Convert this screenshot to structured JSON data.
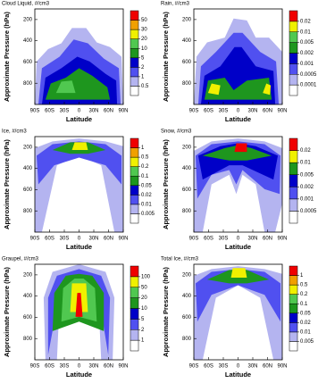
{
  "chart_data": [
    {
      "type": "contour",
      "title": "Cloud Liquid, #/cm3",
      "xlabel": "Latitude",
      "ylabel": "Approximate Pressure (hPa)",
      "xlim": [
        -90,
        90
      ],
      "xticks": [
        {
          "value": -90,
          "label": "90S"
        },
        {
          "value": -60,
          "label": "60S"
        },
        {
          "value": -30,
          "label": "30S"
        },
        {
          "value": 0,
          "label": "0"
        },
        {
          "value": 30,
          "label": "30N"
        },
        {
          "value": 60,
          "label": "60N"
        },
        {
          "value": 90,
          "label": "90N"
        }
      ],
      "ylim": [
        100,
        1000
      ],
      "yticks": [
        200,
        400,
        600,
        800
      ],
      "levels": [
        0.5,
        1,
        2,
        5,
        10,
        20,
        30,
        50
      ],
      "colors": [
        "#ffffff",
        "#b4b4f0",
        "#5050f0",
        "#0000c8",
        "#1e961e",
        "#50c850",
        "#f0f000",
        "#f0a000",
        "#f00000"
      ]
    },
    {
      "type": "contour",
      "title": "Rain, #/cm3",
      "xlabel": "Latitude",
      "ylabel": "Approximate Pressure (hPa)",
      "xlim": [
        -90,
        90
      ],
      "xticks": [
        {
          "value": -90,
          "label": "90S"
        },
        {
          "value": -60,
          "label": "60S"
        },
        {
          "value": -30,
          "label": "30S"
        },
        {
          "value": 0,
          "label": "0"
        },
        {
          "value": 30,
          "label": "30N"
        },
        {
          "value": 60,
          "label": "60N"
        },
        {
          "value": 90,
          "label": "90N"
        }
      ],
      "ylim": [
        100,
        1000
      ],
      "yticks": [
        200,
        400,
        600,
        800
      ],
      "levels": [
        0.0001,
        0.0005,
        0.001,
        0.002,
        0.005,
        0.01,
        0.02
      ],
      "colors": [
        "#ffffff",
        "#b4b4f0",
        "#5050f0",
        "#0000c8",
        "#1e961e",
        "#50c850",
        "#f0f000",
        "#f00000"
      ]
    },
    {
      "type": "contour",
      "title": "Ice, #/cm3",
      "xlabel": "Latitude",
      "ylabel": "Approximate Pressure (hPa)",
      "xlim": [
        -90,
        90
      ],
      "xticks": [
        {
          "value": -90,
          "label": "90S"
        },
        {
          "value": -60,
          "label": "60S"
        },
        {
          "value": -30,
          "label": "30S"
        },
        {
          "value": 0,
          "label": "0"
        },
        {
          "value": 30,
          "label": "30N"
        },
        {
          "value": 60,
          "label": "60N"
        },
        {
          "value": 90,
          "label": "90N"
        }
      ],
      "ylim": [
        100,
        1000
      ],
      "yticks": [
        200,
        400,
        600,
        800
      ],
      "levels": [
        0.005,
        0.01,
        0.02,
        0.05,
        0.1,
        0.2,
        0.5,
        1
      ],
      "colors": [
        "#ffffff",
        "#b4b4f0",
        "#5050f0",
        "#0000c8",
        "#1e961e",
        "#50c850",
        "#f0f000",
        "#f0a000",
        "#f00000"
      ]
    },
    {
      "type": "contour",
      "title": "Snow, #/cm3",
      "xlabel": "Latitude",
      "ylabel": "Approximate Pressure (hPa)",
      "xlim": [
        -90,
        90
      ],
      "xticks": [
        {
          "value": -90,
          "label": "90S"
        },
        {
          "value": -60,
          "label": "60S"
        },
        {
          "value": -30,
          "label": "30S"
        },
        {
          "value": 0,
          "label": "0"
        },
        {
          "value": 30,
          "label": "30N"
        },
        {
          "value": 60,
          "label": "60N"
        },
        {
          "value": 90,
          "label": "90N"
        }
      ],
      "ylim": [
        100,
        1000
      ],
      "yticks": [
        200,
        400,
        600,
        800
      ],
      "levels": [
        0.0005,
        0.001,
        0.002,
        0.005,
        0.01,
        0.02
      ],
      "colors": [
        "#ffffff",
        "#b4b4f0",
        "#5050f0",
        "#0000c8",
        "#1e961e",
        "#f0f000",
        "#f00000"
      ]
    },
    {
      "type": "contour",
      "title": "Graupel, #/cm3",
      "xlabel": "Latitude",
      "ylabel": "Approximate Pressure (hPa)",
      "xlim": [
        -90,
        90
      ],
      "xticks": [
        {
          "value": -90,
          "label": "90S"
        },
        {
          "value": -60,
          "label": "60S"
        },
        {
          "value": -30,
          "label": "30S"
        },
        {
          "value": 0,
          "label": "0"
        },
        {
          "value": 30,
          "label": "30N"
        },
        {
          "value": 60,
          "label": "60N"
        },
        {
          "value": 90,
          "label": "90N"
        }
      ],
      "ylim": [
        100,
        1000
      ],
      "yticks": [
        200,
        400,
        600,
        800
      ],
      "levels": [
        1,
        2,
        5,
        10,
        20,
        50,
        100
      ],
      "colors": [
        "#ffffff",
        "#b4b4f0",
        "#5050f0",
        "#0000c8",
        "#1e961e",
        "#50c850",
        "#f0f000",
        "#f00000"
      ]
    },
    {
      "type": "contour",
      "title": "Total Ice, #/cm3",
      "xlabel": "Latitude",
      "ylabel": "Approximate Pressure (hPa)",
      "xlim": [
        -90,
        90
      ],
      "xticks": [
        {
          "value": -90,
          "label": "90S"
        },
        {
          "value": -60,
          "label": "60S"
        },
        {
          "value": -30,
          "label": "30S"
        },
        {
          "value": 0,
          "label": "0"
        },
        {
          "value": 30,
          "label": "30N"
        },
        {
          "value": 60,
          "label": "60N"
        },
        {
          "value": 90,
          "label": "90N"
        }
      ],
      "ylim": [
        100,
        1000
      ],
      "yticks": [
        200,
        400,
        600,
        800
      ],
      "levels": [
        0.005,
        0.01,
        0.02,
        0.05,
        0.1,
        0.2,
        0.5,
        1
      ],
      "colors": [
        "#ffffff",
        "#b4b4f0",
        "#5050f0",
        "#0000c8",
        "#1e961e",
        "#50c850",
        "#f0f000",
        "#f0a000",
        "#f00000"
      ]
    }
  ]
}
